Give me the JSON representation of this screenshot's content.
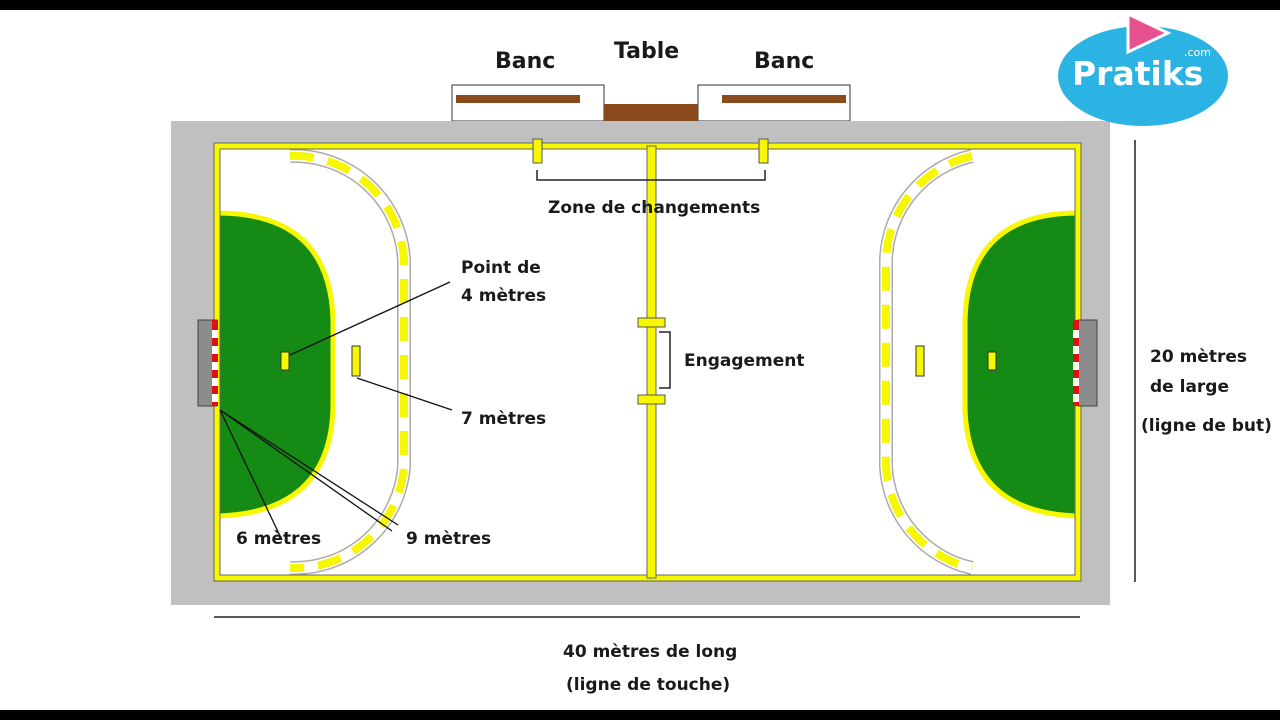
{
  "labels": {
    "banc_left": "Banc",
    "table": "Table",
    "banc_right": "Banc",
    "zone_changements": "Zone de changements",
    "point_4m_line1": "Point de",
    "point_4m_line2": "4 mètres",
    "engagement": "Engagement",
    "sept_metres": "7 mètres",
    "six_metres": "6 mètres",
    "neuf_metres": "9 mètres",
    "largeur_line1": "20 mètres",
    "largeur_line2": "de large",
    "largeur_line3": "(ligne de but)",
    "longueur_line1": "40 mètres de long",
    "longueur_line2": "(ligne de touche)"
  },
  "logo": {
    "brand": "Pratiks",
    "suffix": ".com",
    "play-icon": "play-triangle-icon"
  },
  "colors": {
    "court_line": "#f7f700",
    "goal_area": "#158a15",
    "surround": "#c0c0c0",
    "bench": "#8b4a1c",
    "logo_blue": "#2bb3e3",
    "logo_pink": "#e8518f"
  }
}
